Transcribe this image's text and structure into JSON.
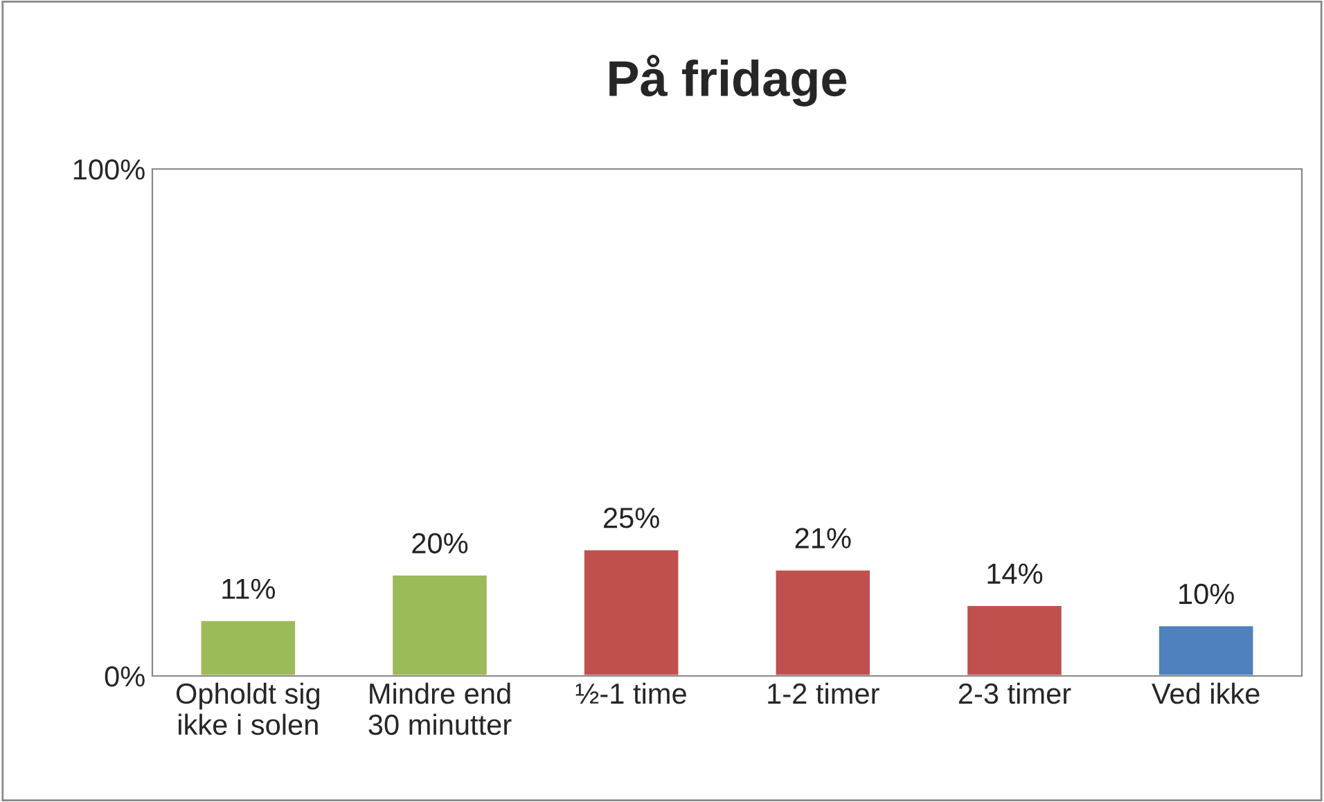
{
  "chart_data": {
    "type": "bar",
    "title": "På fridage",
    "categories": [
      "Opholdt sig\nikke i solen",
      "Mindre end\n30 minutter",
      "½-1 time",
      "1-2 timer",
      "2-3 timer",
      "Ved ikke"
    ],
    "values": [
      11,
      20,
      25,
      21,
      14,
      10
    ],
    "colors": [
      "#9bbb59",
      "#9bbb59",
      "#c0504d",
      "#c0504d",
      "#c0504d",
      "#4f81bd"
    ],
    "value_labels": [
      "11%",
      "20%",
      "25%",
      "21%",
      "14%",
      "10%"
    ],
    "ylim": [
      0,
      100
    ],
    "yticks": [
      {
        "value": 0,
        "label": "0%"
      },
      {
        "value": 100,
        "label": "100%"
      }
    ],
    "grid": false,
    "legend": false
  }
}
